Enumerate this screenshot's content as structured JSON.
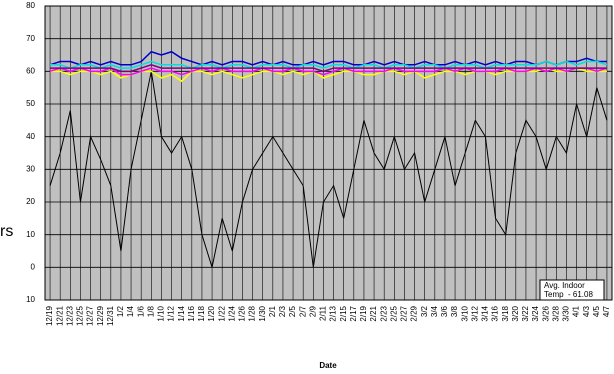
{
  "chart_data": {
    "type": "line",
    "xlabel": "Date",
    "side_text": "rs",
    "annotation": [
      "Avg. Indoor",
      "Temp  - 61.08"
    ],
    "background": "#c0c0c0",
    "grid": true,
    "categories": [
      "12/19",
      "12/21",
      "12/23",
      "12/25",
      "12/27",
      "12/29",
      "12/31",
      "1/2",
      "1/4",
      "1/6",
      "1/8",
      "1/10",
      "1/12",
      "1/14",
      "1/16",
      "1/18",
      "1/20",
      "1/22",
      "1/24",
      "1/26",
      "1/28",
      "1/30",
      "2/1",
      "2/3",
      "2/5",
      "2/7",
      "2/9",
      "2/11",
      "2/13",
      "2/15",
      "2/17",
      "2/19",
      "2/21",
      "2/23",
      "2/25",
      "2/27",
      "2/29",
      "3/2",
      "3/4",
      "3/6",
      "3/8",
      "3/10",
      "3/12",
      "3/14",
      "3/16",
      "3/18",
      "3/20",
      "3/22",
      "3/24",
      "3/26",
      "3/28",
      "3/30",
      "4/1",
      "4/3",
      "4/5",
      "4/7"
    ],
    "ylim": [
      -10,
      80
    ],
    "yticks": [
      {
        "value": -10,
        "label": "10"
      },
      0,
      10,
      20,
      30,
      40,
      50,
      60,
      70,
      80
    ],
    "series": [
      {
        "color": "#000000",
        "values": [
          25,
          35,
          48,
          20,
          40,
          33,
          25,
          5,
          30,
          45,
          60,
          40,
          35,
          40,
          30,
          10,
          0,
          15,
          5,
          20,
          30,
          35,
          40,
          35,
          30,
          25,
          0,
          20,
          25,
          15,
          30,
          45,
          35,
          30,
          40,
          30,
          35,
          20,
          30,
          40,
          25,
          35,
          45,
          40,
          15,
          10,
          35,
          45,
          40,
          30,
          40,
          35,
          50,
          40,
          55,
          45
        ]
      },
      {
        "color": "#0000cc",
        "values": [
          62,
          63,
          63,
          62,
          63,
          62,
          63,
          62,
          62,
          63,
          66,
          65,
          66,
          64,
          63,
          62,
          63,
          62,
          63,
          63,
          62,
          63,
          62,
          63,
          62,
          62,
          63,
          62,
          63,
          63,
          62,
          62,
          63,
          62,
          63,
          62,
          62,
          63,
          62,
          62,
          63,
          62,
          63,
          62,
          63,
          62,
          63,
          63,
          62,
          63,
          62,
          63,
          63,
          64,
          63,
          63
        ]
      },
      {
        "color": "#00e0e0",
        "values": [
          62,
          62,
          61,
          62,
          62,
          61,
          62,
          61,
          61,
          62,
          63,
          62,
          62,
          62,
          61,
          62,
          62,
          61,
          62,
          62,
          61,
          62,
          62,
          62,
          61,
          62,
          62,
          61,
          62,
          62,
          61,
          62,
          62,
          61,
          62,
          62,
          61,
          62,
          62,
          61,
          62,
          62,
          62,
          61,
          62,
          62,
          62,
          62,
          62,
          63,
          62,
          63,
          62,
          63,
          63,
          62
        ]
      },
      {
        "color": "#ffff00",
        "values": [
          60,
          60,
          59,
          60,
          60,
          59,
          60,
          58,
          59,
          60,
          60,
          58,
          59,
          57,
          60,
          60,
          59,
          60,
          59,
          58,
          59,
          60,
          60,
          59,
          60,
          59,
          60,
          58,
          59,
          60,
          60,
          59,
          59,
          60,
          60,
          59,
          60,
          58,
          59,
          60,
          60,
          59,
          60,
          60,
          59,
          60,
          60,
          60,
          60,
          61,
          60,
          60,
          61,
          60,
          60,
          60
        ]
      },
      {
        "color": "#ff00ff",
        "values": [
          60,
          61,
          60,
          61,
          60,
          60,
          61,
          59,
          59,
          60,
          61,
          60,
          60,
          59,
          60,
          61,
          60,
          61,
          60,
          60,
          60,
          61,
          60,
          60,
          61,
          60,
          60,
          59,
          60,
          61,
          60,
          60,
          60,
          60,
          61,
          60,
          60,
          60,
          60,
          61,
          60,
          61,
          60,
          60,
          60,
          61,
          60,
          60,
          61,
          60,
          61,
          60,
          61,
          61,
          60,
          61
        ]
      },
      {
        "color": "#800080",
        "values": [
          61,
          61,
          61,
          61,
          61,
          61,
          61,
          60,
          60,
          61,
          62,
          61,
          61,
          61,
          61,
          61,
          61,
          61,
          61,
          61,
          61,
          61,
          61,
          61,
          61,
          61,
          61,
          60,
          61,
          61,
          61,
          61,
          61,
          61,
          61,
          61,
          61,
          61,
          61,
          61,
          61,
          61,
          61,
          61,
          61,
          61,
          61,
          61,
          61,
          61,
          61,
          61,
          61,
          61,
          61,
          61
        ]
      }
    ]
  }
}
